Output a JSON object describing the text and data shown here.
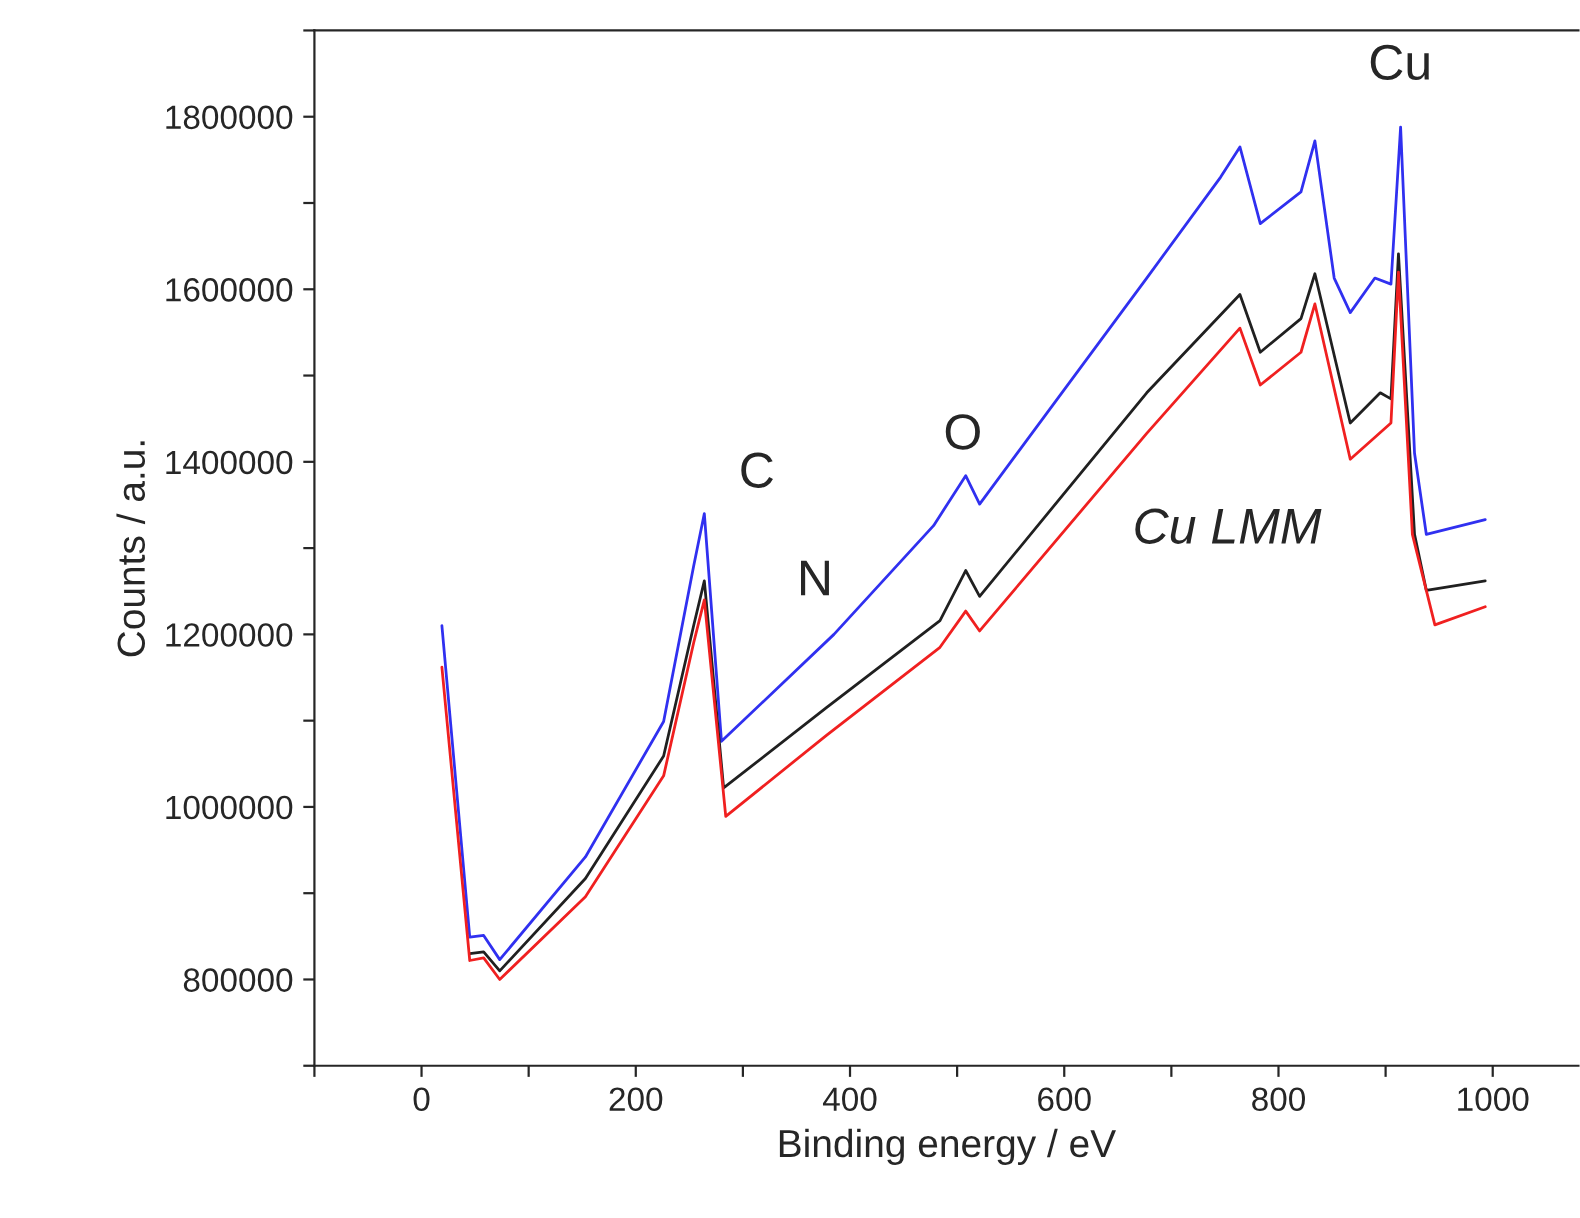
{
  "chart_data": {
    "type": "line",
    "xlabel": "Binding energy / eV",
    "ylabel": "Counts / a.u.",
    "xlim": [
      -100,
      1080
    ],
    "ylim": [
      700000,
      1900000
    ],
    "xticks": [
      {
        "value": -100,
        "label": null
      },
      0,
      {
        "value": 100,
        "label": null
      },
      200,
      {
        "value": 300,
        "label": null
      },
      400,
      {
        "value": 500,
        "label": null
      },
      600,
      {
        "value": 700,
        "label": null
      },
      800,
      {
        "value": 900,
        "label": null
      },
      1000
    ],
    "yticks": [
      {
        "value": 700000,
        "label": null
      },
      800000,
      {
        "value": 900000,
        "label": null
      },
      1000000,
      {
        "value": 1100000,
        "label": null
      },
      1200000,
      {
        "value": 1300000,
        "label": null
      },
      1400000,
      {
        "value": 1500000,
        "label": null
      },
      1600000,
      {
        "value": 1700000,
        "label": null
      },
      1800000,
      {
        "value": 1900000,
        "label": null
      }
    ],
    "grid": false,
    "legend": false,
    "marker": "none",
    "line_style": "solid",
    "series": [
      {
        "color": "#3030f0",
        "x": [
          19,
          45,
          58,
          73,
          153,
          226,
          254,
          264,
          280,
          385,
          478,
          508,
          521,
          677,
          746,
          764,
          783,
          821,
          834,
          852,
          867,
          890,
          905,
          914,
          927,
          938,
          993
        ],
        "values": [
          1210000,
          849000,
          851000,
          823000,
          942000,
          1099000,
          1279000,
          1340000,
          1076000,
          1200000,
          1326000,
          1384000,
          1351000,
          1613000,
          1730000,
          1765000,
          1676000,
          1713000,
          1772000,
          1613000,
          1573000,
          1613000,
          1606000,
          1788000,
          1410000,
          1316000,
          1333000
        ]
      },
      {
        "color": "#202020",
        "x": [
          45,
          58,
          73,
          153,
          226,
          254,
          264,
          282,
          378,
          484,
          508,
          521,
          677,
          764,
          783,
          821,
          834,
          867,
          895,
          905,
          912,
          927,
          938,
          993
        ],
        "values": [
          830000,
          832000,
          810000,
          917000,
          1059000,
          1210000,
          1262000,
          1022000,
          1115000,
          1216000,
          1274000,
          1244000,
          1480000,
          1594000,
          1527000,
          1566000,
          1618000,
          1445000,
          1480000,
          1473000,
          1641000,
          1316000,
          1251000,
          1262000
        ]
      },
      {
        "color": "#f02020",
        "x": [
          19,
          45,
          58,
          73,
          153,
          226,
          254,
          264,
          284,
          378,
          484,
          508,
          521,
          677,
          764,
          783,
          821,
          834,
          867,
          905,
          912,
          925,
          946,
          993
        ],
        "values": [
          1162000,
          822000,
          825000,
          800000,
          896000,
          1036000,
          1190000,
          1240000,
          989000,
          1083000,
          1185000,
          1227000,
          1204000,
          1433000,
          1555000,
          1489000,
          1527000,
          1583000,
          1403000,
          1445000,
          1620000,
          1316000,
          1211000,
          1232000
        ]
      }
    ],
    "annotations": [
      "C",
      "N",
      "O",
      "Cu",
      "Cu LMM"
    ]
  }
}
